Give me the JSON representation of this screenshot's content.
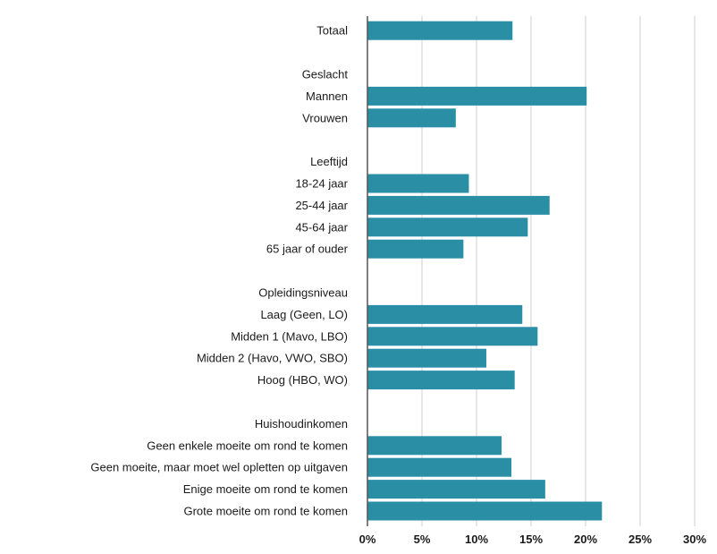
{
  "chart_data": {
    "type": "bar",
    "orientation": "horizontal",
    "title": "",
    "xlabel": "",
    "ylabel": "",
    "xlim": [
      0,
      30
    ],
    "x_ticks": [
      0,
      5,
      10,
      15,
      20,
      25,
      30
    ],
    "x_tick_labels": [
      "0%",
      "5%",
      "10%",
      "15%",
      "20%",
      "25%",
      "30%"
    ],
    "grid": true,
    "legend": "none",
    "bar_color": "#2a8fa5",
    "rows": [
      {
        "label": "Totaal",
        "value": 13.3,
        "kind": "bar"
      },
      {
        "label": "",
        "value": null,
        "kind": "spacer"
      },
      {
        "label": "Geslacht",
        "value": null,
        "kind": "header"
      },
      {
        "label": "Mannen",
        "value": 20.1,
        "kind": "bar"
      },
      {
        "label": "Vrouwen",
        "value": 8.1,
        "kind": "bar"
      },
      {
        "label": "",
        "value": null,
        "kind": "spacer"
      },
      {
        "label": "Leeftijd",
        "value": null,
        "kind": "header"
      },
      {
        "label": "18-24 jaar",
        "value": 9.3,
        "kind": "bar"
      },
      {
        "label": "25-44 jaar",
        "value": 16.7,
        "kind": "bar"
      },
      {
        "label": "45-64 jaar",
        "value": 14.7,
        "kind": "bar"
      },
      {
        "label": "65 jaar of ouder",
        "value": 8.8,
        "kind": "bar"
      },
      {
        "label": "",
        "value": null,
        "kind": "spacer"
      },
      {
        "label": "Opleidingsniveau",
        "value": null,
        "kind": "header"
      },
      {
        "label": "Laag (Geen, LO)",
        "value": 14.2,
        "kind": "bar"
      },
      {
        "label": "Midden 1 (Mavo, LBO)",
        "value": 15.6,
        "kind": "bar"
      },
      {
        "label": "Midden 2 (Havo, VWO, SBO)",
        "value": 10.9,
        "kind": "bar"
      },
      {
        "label": "Hoog (HBO, WO)",
        "value": 13.5,
        "kind": "bar"
      },
      {
        "label": "",
        "value": null,
        "kind": "spacer"
      },
      {
        "label": "Huishoudinkomen",
        "value": null,
        "kind": "header"
      },
      {
        "label": "Geen enkele moeite om rond te komen",
        "value": 12.3,
        "kind": "bar"
      },
      {
        "label": "Geen moeite, maar moet wel opletten op uitgaven",
        "value": 13.2,
        "kind": "bar"
      },
      {
        "label": "Enige moeite om rond te komen",
        "value": 16.3,
        "kind": "bar"
      },
      {
        "label": "Grote moeite om rond te komen",
        "value": 21.5,
        "kind": "bar"
      }
    ]
  }
}
